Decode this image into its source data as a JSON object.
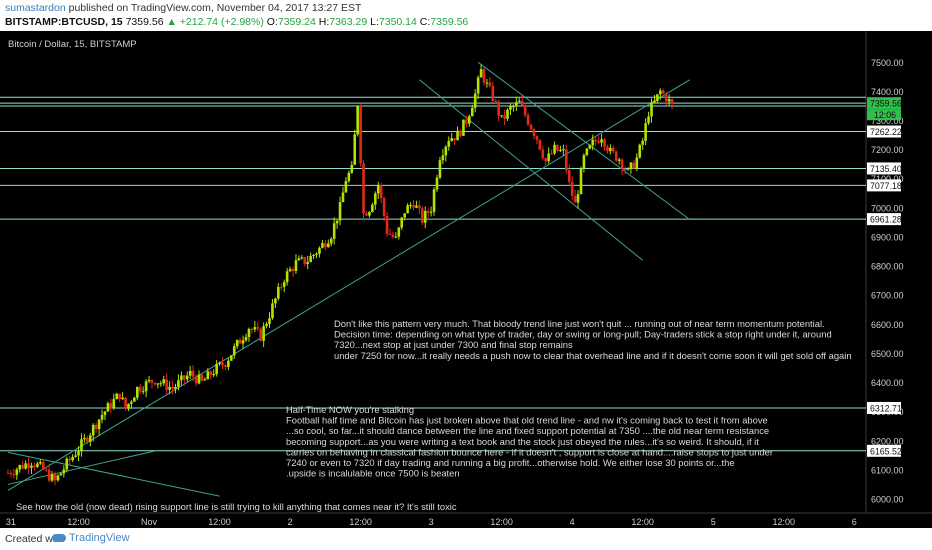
{
  "header": {
    "author": "sumastardon",
    "published_text": "published on TradingView.com, November 04, 2017 13:27 EST",
    "symbol": "BITSTAMP:BTCUSD, 15",
    "last": "7359.56",
    "change": "▲ +212.74 (+2.98%)",
    "open_label": "O:",
    "open": "7359.24",
    "high_label": "H:",
    "high": "7363.29",
    "low_label": "L:",
    "low": "7350.14",
    "close_label": "C:",
    "close": "7359.56"
  },
  "chart_title": "Bitcoin / Dollar, 15, BITSTAMP",
  "footer": {
    "created_with": "Created with",
    "brand": "TradingView"
  },
  "colors": {
    "background": "#000000",
    "candle_up": "#b2e400",
    "candle_down": "#e12a1a",
    "level_line": "#8fe0d2",
    "trend_line": "#3fa38e",
    "annotation_text": "#d9d9d9",
    "axis_text": "#cfcfcf",
    "price_label_bg": "#ffffff",
    "current_price_bg": "#2fbf4a"
  },
  "annotations": [
    {
      "id": "note1",
      "lines": [
        "Don't like this pattern very much. That bloody trend line just won't quit ... running out of near term momentum potential.",
        "Decision time: depending on what type of trader, day or swing or long-pull; Day-traders stick a stop right under it, around",
        "7320...next stop at just under 7300 and final stop remains",
        "under 7250 for now...it really needs a push now to clear that overhead line and if it doesn't come soon it will get sold off again"
      ]
    },
    {
      "id": "note2",
      "lines": [
        "Half-Time   NOW you're stalking",
        "Football half time and Bitcoin has just broken above that old trend line - and nw it's coming back to test it from above",
        "...so cool, so far...it should dance between the line and fixed support potential at 7350 ....the old near term resistance",
        "becoming support...as you were writing a text book and the stock just obeyed the rules...it's so weird. It should, if it",
        "carries on behaving in classical fashion bounce here - if it doesn't , support is close at hand....raise stops to just under",
        "7240  or even to 7320 if day trading and running a big profit...otherwise hold. We either lose 30 points or...the",
        ".upside is incalulable once 7500 is beaten"
      ]
    },
    {
      "id": "note3",
      "lines": [
        "See how the old (now dead) rising support line is still trying to kill anything that comes near it?  It's still toxic"
      ]
    }
  ],
  "chart_data": {
    "type": "candlestick",
    "title": "Bitcoin / Dollar, 15, BITSTAMP",
    "ylim": [
      6000,
      7580
    ],
    "y_ticks": [
      6000,
      6100,
      6200,
      6300,
      6400,
      6500,
      6600,
      6700,
      6800,
      6900,
      7000,
      7100,
      7200,
      7300,
      7400,
      7500
    ],
    "y_tick_labels": [
      "6000.00",
      "6100.00",
      "6200.00",
      "6300.00",
      "6400.00",
      "6500.00",
      "6600.00",
      "6700.00",
      "6800.00",
      "6900.00",
      "7000.00",
      "7100.00",
      "7200.00",
      "7300.00",
      "7400.00",
      "7500.00"
    ],
    "x_ticks": [
      {
        "label": "31",
        "t": 0.5
      },
      {
        "label": "12:00",
        "t": 12
      },
      {
        "label": "Nov",
        "t": 24
      },
      {
        "label": "12:00",
        "t": 36
      },
      {
        "label": "2",
        "t": 48
      },
      {
        "label": "12:00",
        "t": 60
      },
      {
        "label": "3",
        "t": 72
      },
      {
        "label": "12:00",
        "t": 84
      },
      {
        "label": "4",
        "t": 96
      },
      {
        "label": "12:00",
        "t": 108
      },
      {
        "label": "5",
        "t": 120
      },
      {
        "label": "12:00",
        "t": 132
      },
      {
        "label": "6",
        "t": 144
      }
    ],
    "x_range_hours": [
      0,
      146
    ],
    "horizontal_levels": [
      {
        "value": 7359.56,
        "label": "7359.56",
        "current": true
      },
      {
        "value": 7262.22,
        "label": "7262.22"
      },
      {
        "value": 7135.4,
        "label": "7135.40"
      },
      {
        "value": 7077.18,
        "label": "7077.18"
      },
      {
        "value": 6961.28,
        "label": "6961.28"
      },
      {
        "value": 6312.71,
        "label": "6312.71"
      },
      {
        "value": 6165.52,
        "label": "6165.52"
      }
    ],
    "extra_level_lines": [
      7380,
      7350
    ],
    "countdown_label": "12:06",
    "trend_lines": [
      {
        "t1": 0,
        "p1": 6030,
        "t2": 116,
        "p2": 7440
      },
      {
        "t1": 0,
        "p1": 6050,
        "t2": 25,
        "p2": 6165
      },
      {
        "t1": 70,
        "p1": 7440,
        "t2": 108,
        "p2": 6820
      },
      {
        "t1": 80,
        "p1": 7500,
        "t2": 116,
        "p2": 6960
      },
      {
        "t1": 0,
        "p1": 6160,
        "t2": 36,
        "p2": 6010
      }
    ],
    "price_path": [
      [
        0,
        6090
      ],
      [
        4,
        6130
      ],
      [
        6,
        6100
      ],
      [
        8,
        6060
      ],
      [
        10,
        6120
      ],
      [
        13,
        6200
      ],
      [
        16,
        6290
      ],
      [
        19,
        6360
      ],
      [
        20,
        6310
      ],
      [
        22,
        6380
      ],
      [
        25,
        6410
      ],
      [
        28,
        6380
      ],
      [
        31,
        6430
      ],
      [
        33,
        6400
      ],
      [
        35,
        6440
      ],
      [
        37,
        6470
      ],
      [
        39,
        6530
      ],
      [
        41,
        6590
      ],
      [
        43,
        6560
      ],
      [
        45,
        6660
      ],
      [
        47,
        6760
      ],
      [
        49,
        6810
      ],
      [
        51,
        6820
      ],
      [
        53,
        6860
      ],
      [
        55,
        6910
      ],
      [
        56.5,
        7000
      ],
      [
        57.5,
        7100
      ],
      [
        58.5,
        7130
      ],
      [
        59.5,
        7360
      ],
      [
        60.5,
        6980
      ],
      [
        61.5,
        7000
      ],
      [
        63,
        7080
      ],
      [
        64.5,
        6920
      ],
      [
        66,
        6890
      ],
      [
        67.5,
        6990
      ],
      [
        69,
        7020
      ],
      [
        70.5,
        6960
      ],
      [
        72,
        7000
      ],
      [
        73.5,
        7180
      ],
      [
        75,
        7240
      ],
      [
        76.5,
        7250
      ],
      [
        78,
        7300
      ],
      [
        79.5,
        7390
      ],
      [
        80.5,
        7470
      ],
      [
        81.5,
        7420
      ],
      [
        82.5,
        7380
      ],
      [
        84,
        7300
      ],
      [
        85.5,
        7340
      ],
      [
        87,
        7360
      ],
      [
        88.5,
        7300
      ],
      [
        90,
        7240
      ],
      [
        91.5,
        7160
      ],
      [
        93,
        7200
      ],
      [
        94.5,
        7190
      ],
      [
        95.5,
        7080
      ],
      [
        96.5,
        7010
      ],
      [
        98,
        7170
      ],
      [
        99.5,
        7220
      ],
      [
        101,
        7250
      ],
      [
        102.5,
        7190
      ],
      [
        104,
        7170
      ],
      [
        105.5,
        7120
      ],
      [
        107,
        7170
      ],
      [
        108,
        7230
      ],
      [
        109,
        7330
      ],
      [
        110,
        7360
      ],
      [
        111,
        7400
      ],
      [
        112,
        7380
      ],
      [
        113,
        7350
      ]
    ],
    "candle_interval_hours": 0.25
  }
}
